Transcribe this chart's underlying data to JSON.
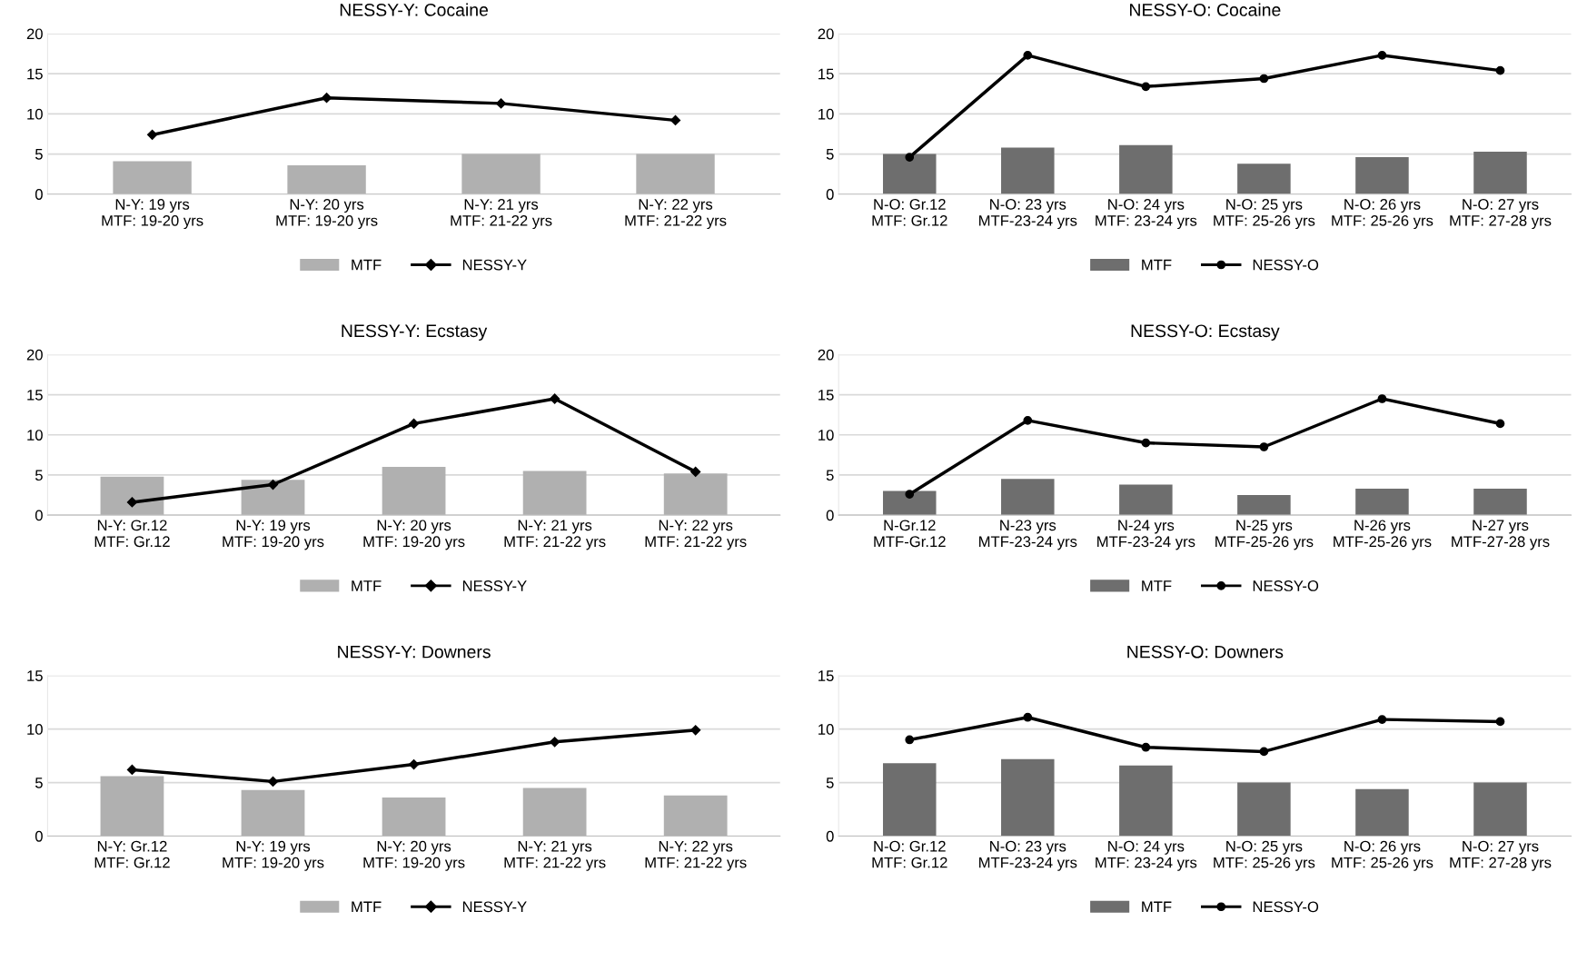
{
  "chart_data": [
    {
      "type": "bar",
      "title": "NESSY-Y: Cocaine",
      "categories": [
        "N-Y: 19 yrs\nMTF: 19-20 yrs",
        "N-Y: 20 yrs\nMTF: 19-20 yrs",
        "N-Y: 21 yrs\nMTF: 21-22 yrs",
        "N-Y: 22 yrs\nMTF: 21-22 yrs"
      ],
      "ylim": [
        0,
        20
      ],
      "yticks": [
        0,
        5,
        10,
        15,
        20
      ],
      "grid": "y",
      "legend": "bottom",
      "series": [
        {
          "name": "MTF",
          "type": "bar",
          "color": "#b0b0b0",
          "values": [
            4.1,
            3.6,
            5.0,
            5.0
          ]
        },
        {
          "name": "NESSY-Y",
          "type": "line",
          "color": "#000000",
          "marker": "diamond",
          "values": [
            7.4,
            12.0,
            11.3,
            9.2
          ]
        }
      ]
    },
    {
      "type": "bar",
      "title": "NESSY-O: Cocaine",
      "categories": [
        "N-O: Gr.12\nMTF: Gr.12",
        "N-O: 23 yrs\nMTF-23-24 yrs",
        "N-O: 24 yrs\nMTF: 23-24 yrs",
        "N-O: 25 yrs\nMTF: 25-26 yrs",
        "N-O: 26 yrs\nMTF: 25-26 yrs",
        "N-O: 27 yrs\nMTF: 27-28 yrs"
      ],
      "ylim": [
        0,
        20
      ],
      "yticks": [
        0,
        5,
        10,
        15,
        20
      ],
      "grid": "y",
      "legend": "bottom",
      "series": [
        {
          "name": "MTF",
          "type": "bar",
          "color": "#6e6e6e",
          "values": [
            5.0,
            5.8,
            6.1,
            3.8,
            4.6,
            5.3
          ]
        },
        {
          "name": "NESSY-O",
          "type": "line",
          "color": "#000000",
          "marker": "circle",
          "values": [
            4.6,
            17.3,
            13.4,
            14.4,
            17.3,
            15.4
          ]
        }
      ]
    },
    {
      "type": "bar",
      "title": "NESSY-Y: Ecstasy",
      "categories": [
        "N-Y: Gr.12\nMTF: Gr.12",
        "N-Y: 19 yrs\nMTF: 19-20 yrs",
        "N-Y: 20 yrs\nMTF: 19-20 yrs",
        "N-Y: 21 yrs\nMTF: 21-22 yrs",
        "N-Y: 22 yrs\nMTF: 21-22 yrs"
      ],
      "ylim": [
        0,
        20
      ],
      "yticks": [
        0,
        5,
        10,
        15,
        20
      ],
      "grid": "y",
      "legend": "bottom",
      "series": [
        {
          "name": "MTF",
          "type": "bar",
          "color": "#b0b0b0",
          "values": [
            4.8,
            4.4,
            6.0,
            5.5,
            5.2
          ]
        },
        {
          "name": "NESSY-Y",
          "type": "line",
          "color": "#000000",
          "marker": "diamond",
          "values": [
            1.6,
            3.8,
            11.4,
            14.5,
            5.4
          ]
        }
      ]
    },
    {
      "type": "bar",
      "title": "NESSY-O: Ecstasy",
      "categories": [
        "N-Gr.12\nMTF-Gr.12",
        "N-23 yrs\nMTF-23-24 yrs",
        "N-24 yrs\nMTF-23-24 yrs",
        "N-25 yrs\nMTF-25-26 yrs",
        "N-26 yrs\nMTF-25-26 yrs",
        "N-27 yrs\nMTF-27-28 yrs"
      ],
      "ylim": [
        0,
        20
      ],
      "yticks": [
        0,
        5,
        10,
        15,
        20
      ],
      "grid": "y",
      "legend": "bottom",
      "series": [
        {
          "name": "MTF",
          "type": "bar",
          "color": "#6e6e6e",
          "values": [
            3.0,
            4.5,
            3.8,
            2.5,
            3.3,
            3.3
          ]
        },
        {
          "name": "NESSY-O",
          "type": "line",
          "color": "#000000",
          "marker": "circle",
          "values": [
            2.6,
            11.8,
            9.0,
            8.5,
            14.5,
            11.4
          ]
        }
      ]
    },
    {
      "type": "bar",
      "title": "NESSY-Y: Downers",
      "categories": [
        "N-Y: Gr.12\nMTF: Gr.12",
        "N-Y: 19 yrs\nMTF: 19-20 yrs",
        "N-Y: 20 yrs\nMTF: 19-20 yrs",
        "N-Y: 21 yrs\nMTF: 21-22 yrs",
        "N-Y: 22 yrs\nMTF: 21-22 yrs"
      ],
      "ylim": [
        0,
        15
      ],
      "yticks": [
        0,
        5,
        10,
        15
      ],
      "grid": "y",
      "legend": "bottom",
      "series": [
        {
          "name": "MTF",
          "type": "bar",
          "color": "#b0b0b0",
          "values": [
            5.6,
            4.3,
            3.6,
            4.5,
            3.8
          ]
        },
        {
          "name": "NESSY-Y",
          "type": "line",
          "color": "#000000",
          "marker": "diamond",
          "values": [
            6.2,
            5.1,
            6.7,
            8.8,
            9.9
          ]
        }
      ]
    },
    {
      "type": "bar",
      "title": "NESSY-O: Downers",
      "categories": [
        "N-O: Gr.12\nMTF: Gr.12",
        "N-O: 23 yrs\nMTF-23-24 yrs",
        "N-O: 24 yrs\nMTF: 23-24 yrs",
        "N-O: 25 yrs\nMTF: 25-26 yrs",
        "N-O: 26 yrs\nMTF: 25-26 yrs",
        "N-O: 27 yrs\nMTF: 27-28 yrs"
      ],
      "ylim": [
        0,
        15
      ],
      "yticks": [
        0,
        5,
        10,
        15
      ],
      "grid": "y",
      "legend": "bottom",
      "series": [
        {
          "name": "MTF",
          "type": "bar",
          "color": "#6e6e6e",
          "values": [
            6.8,
            7.2,
            6.6,
            5.0,
            4.4,
            5.0
          ]
        },
        {
          "name": "NESSY-O",
          "type": "line",
          "color": "#000000",
          "marker": "circle",
          "values": [
            9.0,
            11.1,
            8.3,
            7.9,
            10.9,
            10.7
          ]
        }
      ]
    }
  ]
}
